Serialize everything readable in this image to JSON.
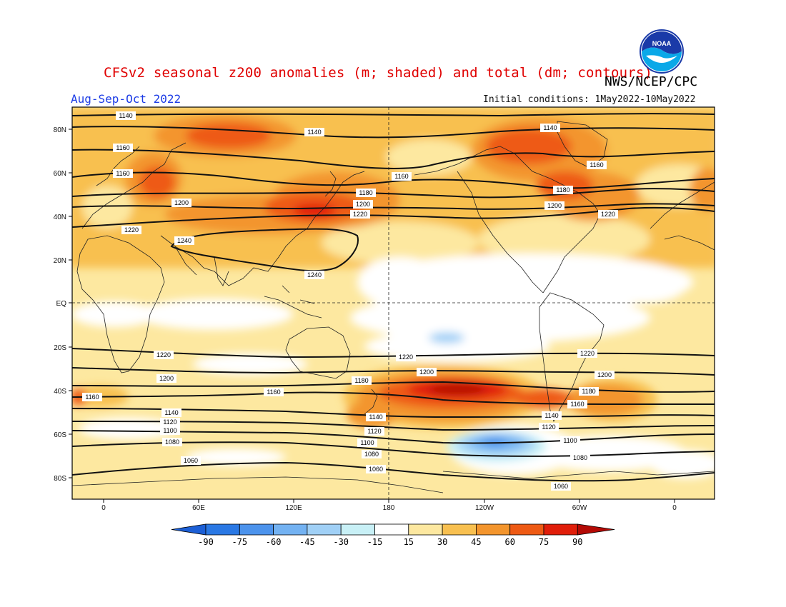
{
  "title": "CFSv2 seasonal z200 anomalies (m; shaded) and total (dm; contours)",
  "agency": "NWS/NCEP/CPC",
  "season": "Aug-Sep-Oct 2022",
  "initial_conditions": "Initial conditions: 1May2022-10May2022",
  "logo_text": "NOAA",
  "lat_labels": [
    "80N",
    "60N",
    "40N",
    "20N",
    "EQ",
    "20S",
    "40S",
    "60S",
    "80S"
  ],
  "lon_labels": [
    "0",
    "60E",
    "120E",
    "180",
    "120W",
    "60W",
    "0"
  ],
  "colorbar": {
    "ticks": [
      "-90",
      "-75",
      "-60",
      "-45",
      "-30",
      "-15",
      "15",
      "30",
      "45",
      "60",
      "75",
      "90"
    ],
    "colors": [
      "#1c5fd6",
      "#2a78e4",
      "#4c93ec",
      "#73b2f2",
      "#a0d0f6",
      "#c8f0f6",
      "#ffffff",
      "#fde8a0",
      "#f8c050",
      "#f3952d",
      "#ee5a14",
      "#e01e0a",
      "#b40a05"
    ]
  },
  "contour_labels": [
    "1140",
    "1140",
    "1140",
    "1160",
    "1160",
    "1160",
    "1160",
    "1180",
    "1180",
    "1200",
    "1200",
    "1200",
    "1220",
    "1220",
    "1220",
    "1240",
    "1240",
    "1220",
    "1220",
    "1220",
    "1200",
    "1200",
    "1200",
    "1180",
    "1180",
    "1160",
    "1160",
    "1160",
    "1140",
    "1140",
    "1140",
    "1120",
    "1120",
    "1120",
    "1100",
    "1100",
    "1100",
    "1080",
    "1080",
    "1080",
    "1060",
    "1060",
    "1060"
  ],
  "chart_data": {
    "type": "heatmap",
    "title": "CFSv2 seasonal z200 anomalies (m; shaded) and total (dm; contours)",
    "period": "Aug-Sep-Oct 2022",
    "anomaly_units": "m",
    "contour_units": "dm",
    "contour_levels": [
      1060,
      1080,
      1100,
      1120,
      1140,
      1160,
      1180,
      1200,
      1220,
      1240
    ],
    "color_levels": [
      -90,
      -75,
      -60,
      -45,
      -30,
      -15,
      15,
      30,
      45,
      60,
      75,
      90
    ],
    "notable_anomalies": [
      {
        "region": "South Pacific near 40S 160W",
        "value": 90
      },
      {
        "region": "Southern Ocean near 65S 120W",
        "value": -45
      },
      {
        "region": "Tropical Pacific near 10S 130W",
        "value": -15
      },
      {
        "region": "Northwest Pacific near 40N 135E",
        "value": 75
      },
      {
        "region": "North America / Arctic Canada",
        "value": 60
      },
      {
        "region": "Europe / Russia near 60N 30E",
        "value": 60
      }
    ]
  }
}
